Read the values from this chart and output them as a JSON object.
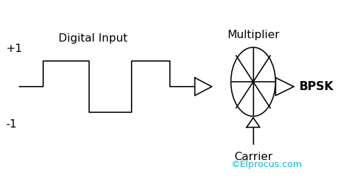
{
  "background_color": "#ffffff",
  "line_color": "#000000",
  "text_color": "#2b2b2b",
  "copyright_color": "#00b8c8",
  "label_plus1": "+1",
  "label_minus1": "-1",
  "label_digital_input": "Digital Input",
  "label_multiplier": "Multiplier",
  "label_bpsk": "BPSK",
  "label_carrier": "Carrier",
  "label_copyright": "©Elprocus.com",
  "fig_width": 4.85,
  "fig_height": 2.54,
  "dpi": 100
}
